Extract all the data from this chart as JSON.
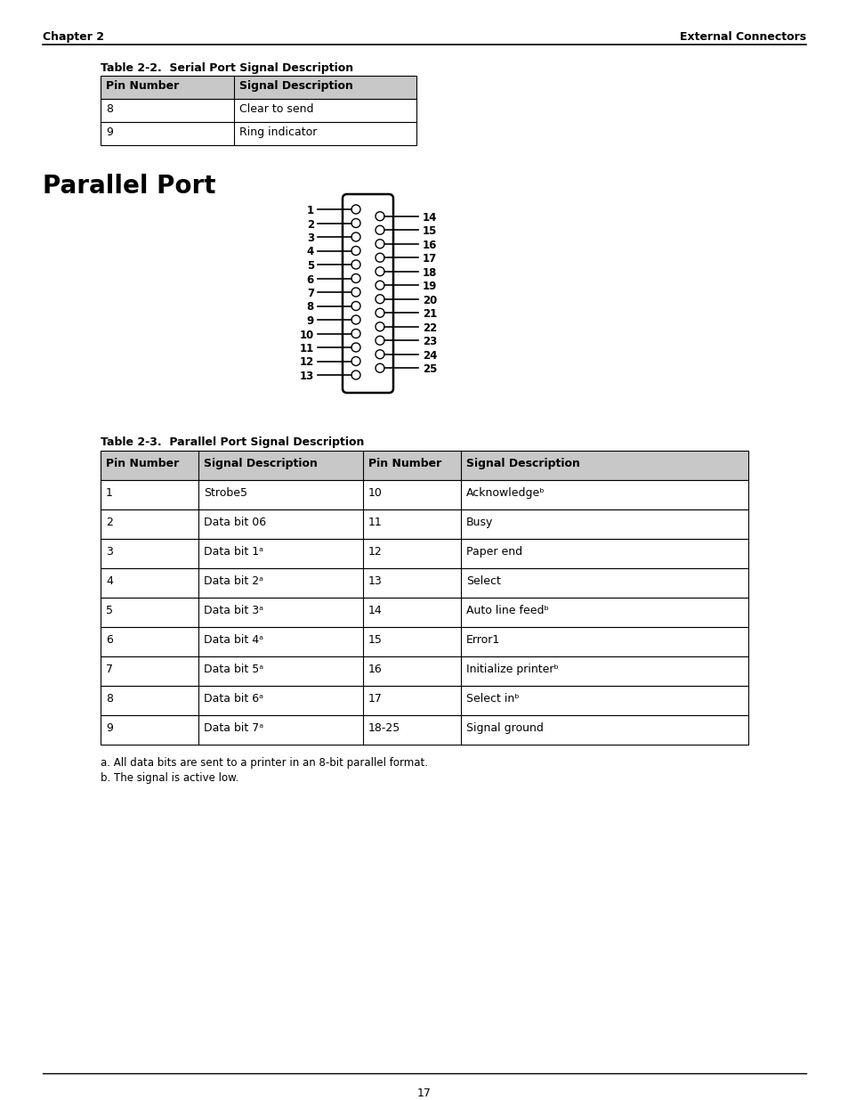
{
  "header_left": "Chapter 2",
  "header_right": "External Connectors",
  "footer_page": "17",
  "table1_title": "Table 2-2.  Serial Port Signal Description",
  "table1_headers": [
    "Pin Number",
    "Signal Description"
  ],
  "table1_rows": [
    [
      "8",
      "Clear to send"
    ],
    [
      "9",
      "Ring indicator"
    ]
  ],
  "section_title": "Parallel Port",
  "table2_title": "Table 2-3.  Parallel Port Signal Description",
  "table2_headers": [
    "Pin Number",
    "Signal Description",
    "Pin Number",
    "Signal Description"
  ],
  "table2_rows": [
    [
      "1",
      "Strobe5",
      "10",
      "Acknowledgeᵇ"
    ],
    [
      "2",
      "Data bit 06",
      "11",
      "Busy"
    ],
    [
      "3",
      "Data bit 1ᵃ",
      "12",
      "Paper end"
    ],
    [
      "4",
      "Data bit 2ᵃ",
      "13",
      "Select"
    ],
    [
      "5",
      "Data bit 3ᵃ",
      "14",
      "Auto line feedᵇ"
    ],
    [
      "6",
      "Data bit 4ᵃ",
      "15",
      "Error1"
    ],
    [
      "7",
      "Data bit 5ᵃ",
      "16",
      "Initialize printerᵇ"
    ],
    [
      "8",
      "Data bit 6ᵃ",
      "17",
      "Select inᵇ"
    ],
    [
      "9",
      "Data bit 7ᵃ",
      "18-25",
      "Signal ground"
    ]
  ],
  "footnote_a": "a. All data bits are sent to a printer in an 8-bit parallel format.",
  "footnote_b": "b. The signal is active low.",
  "connector_pins_left": [
    "1",
    "2",
    "3",
    "4",
    "5",
    "6",
    "7",
    "8",
    "9",
    "10",
    "11",
    "12",
    "13"
  ],
  "connector_pins_right": [
    "14",
    "15",
    "16",
    "17",
    "18",
    "19",
    "20",
    "21",
    "22",
    "23",
    "24",
    "25"
  ],
  "bg_color": "#ffffff",
  "text_color": "#000000",
  "table_border_color": "#000000"
}
